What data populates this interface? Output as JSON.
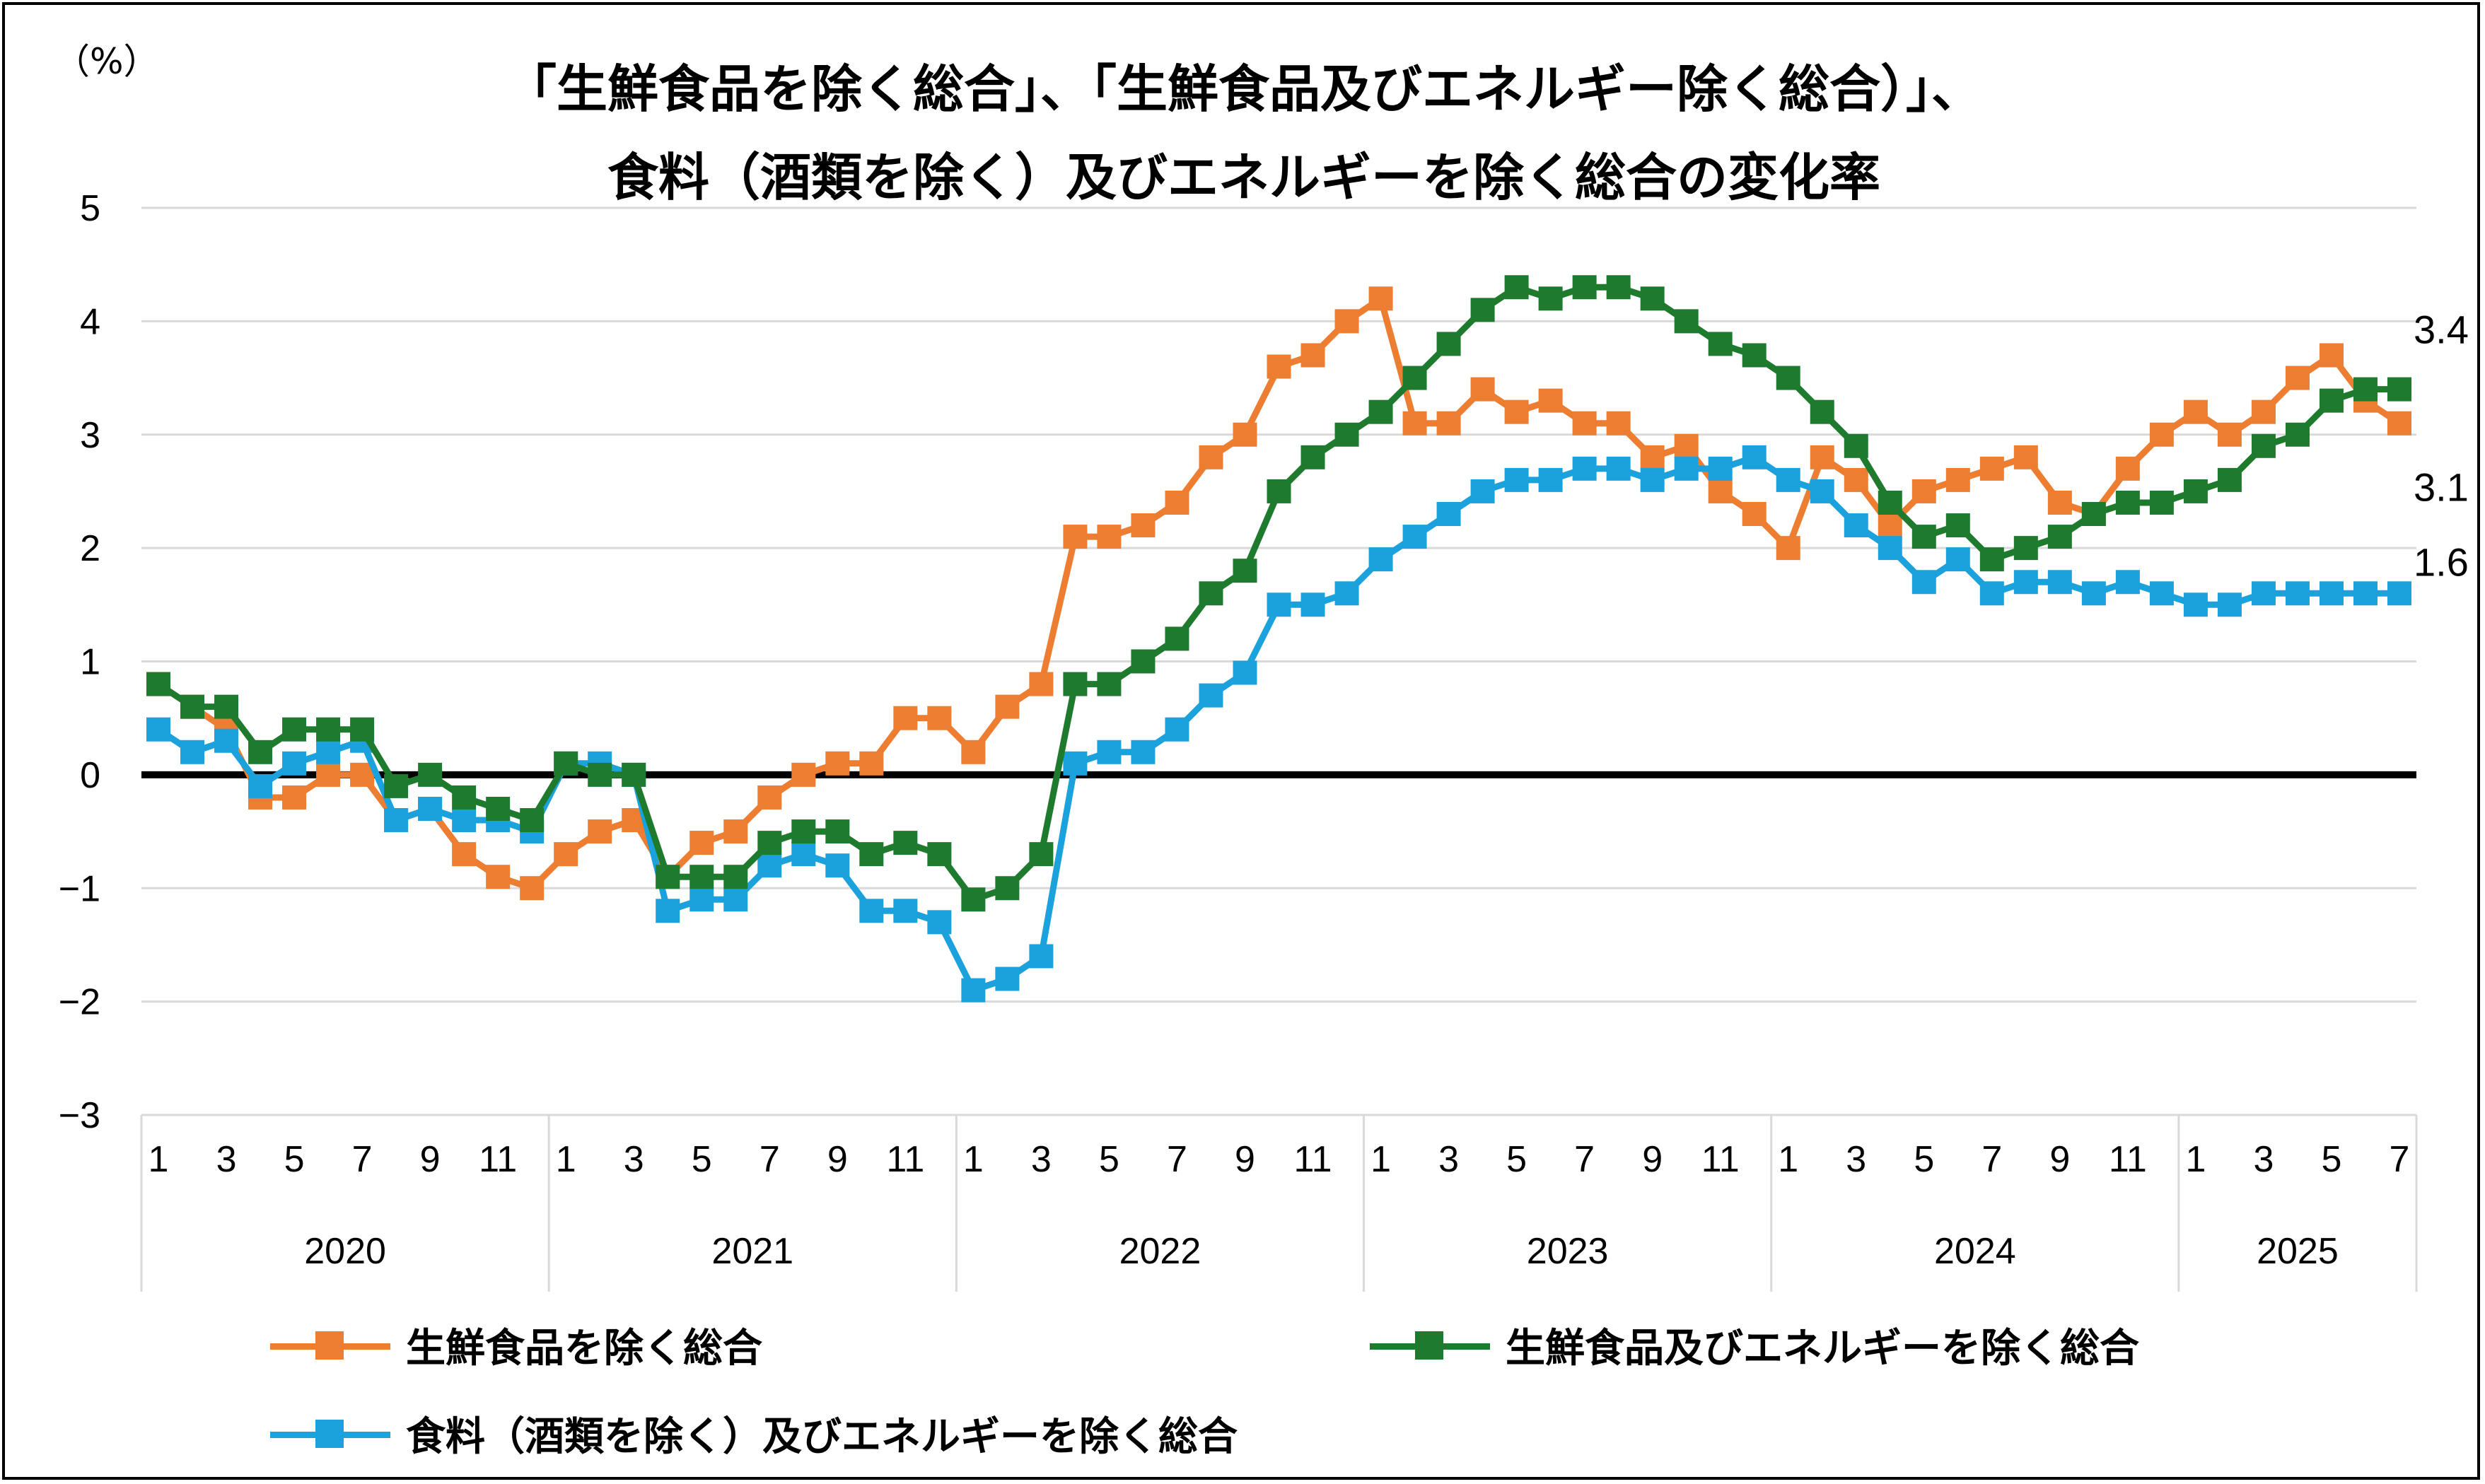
{
  "title_lines": [
    "「生鮮食品を除く総合」、「生鮮食品及びエネルギー除く総合）」、",
    "食料（酒類を除く）及びエネルギーを除く総合の変化率"
  ],
  "unit_label": "（%）",
  "legend": [
    {
      "label": "生鮮食品を除く総合",
      "color": "#ED7D31"
    },
    {
      "label": "生鮮食品及びエネルギーを除く総合",
      "color": "#1E7B2E"
    },
    {
      "label": "食料（酒類を除く）及びエネルギーを除く総合",
      "color": "#1BA1DC"
    }
  ],
  "chart_data": {
    "type": "line",
    "title": "「生鮮食品を除く総合」、「生鮮食品及びエネルギー除く総合）」、食料（酒類を除く）及びエネルギーを除く総合の変化率",
    "ylabel": "（%）",
    "ylim": [
      -3,
      5
    ],
    "yticks": [
      5,
      4,
      3,
      2,
      1,
      0,
      -1,
      -2,
      -3
    ],
    "grid": true,
    "legend_position": "bottom",
    "month_ticks": [
      "1",
      "3",
      "5",
      "7",
      "9",
      "11",
      "1",
      "3",
      "5",
      "7",
      "9",
      "11",
      "1",
      "3",
      "5",
      "7",
      "9",
      "11",
      "1",
      "3",
      "5",
      "7",
      "9",
      "11",
      "1",
      "3",
      "5",
      "7",
      "9",
      "11",
      "1",
      "3",
      "5",
      "7"
    ],
    "years": [
      {
        "label": "2020",
        "months": 12
      },
      {
        "label": "2021",
        "months": 12
      },
      {
        "label": "2022",
        "months": 12
      },
      {
        "label": "2023",
        "months": 12
      },
      {
        "label": "2024",
        "months": 12
      },
      {
        "label": "2025",
        "months": 7
      }
    ],
    "end_labels": [
      "3.4",
      "3.1",
      "1.6"
    ],
    "series": [
      {
        "name": "生鮮食品を除く総合",
        "color": "#ED7D31",
        "values": [
          0.8,
          0.6,
          0.4,
          -0.2,
          -0.2,
          0.0,
          0.0,
          -0.4,
          -0.3,
          -0.7,
          -0.9,
          -1.0,
          -0.7,
          -0.5,
          -0.4,
          -0.9,
          -0.6,
          -0.5,
          -0.2,
          0.0,
          0.1,
          0.1,
          0.5,
          0.5,
          0.2,
          0.6,
          0.8,
          2.1,
          2.1,
          2.2,
          2.4,
          2.8,
          3.0,
          3.6,
          3.7,
          4.0,
          4.2,
          3.1,
          3.1,
          3.4,
          3.2,
          3.3,
          3.1,
          3.1,
          2.8,
          2.9,
          2.5,
          2.3,
          2.0,
          2.8,
          2.6,
          2.2,
          2.5,
          2.6,
          2.7,
          2.8,
          2.4,
          2.3,
          2.7,
          3.0,
          3.2,
          3.0,
          3.2,
          3.5,
          3.7,
          3.3,
          3.1
        ]
      },
      {
        "name": "生鮮食品及びエネルギーを除く総合",
        "color": "#1E7B2E",
        "values": [
          0.8,
          0.6,
          0.6,
          0.2,
          0.4,
          0.4,
          0.4,
          -0.1,
          0.0,
          -0.2,
          -0.3,
          -0.4,
          0.1,
          0.0,
          0.0,
          -0.9,
          -0.9,
          -0.9,
          -0.6,
          -0.5,
          -0.5,
          -0.7,
          -0.6,
          -0.7,
          -1.1,
          -1.0,
          -0.7,
          0.8,
          0.8,
          1.0,
          1.2,
          1.6,
          1.8,
          2.5,
          2.8,
          3.0,
          3.2,
          3.5,
          3.8,
          4.1,
          4.3,
          4.2,
          4.3,
          4.3,
          4.2,
          4.0,
          3.8,
          3.7,
          3.5,
          3.2,
          2.9,
          2.4,
          2.1,
          2.2,
          1.9,
          2.0,
          2.1,
          2.3,
          2.4,
          2.4,
          2.5,
          2.6,
          2.9,
          3.0,
          3.3,
          3.4,
          3.4
        ]
      },
      {
        "name": "食料（酒類を除く）及びエネルギーを除く総合",
        "color": "#1BA1DC",
        "values": [
          0.4,
          0.2,
          0.3,
          -0.1,
          0.1,
          0.2,
          0.3,
          -0.4,
          -0.3,
          -0.4,
          -0.4,
          -0.5,
          0.1,
          0.1,
          0.0,
          -1.2,
          -1.1,
          -1.1,
          -0.8,
          -0.7,
          -0.8,
          -1.2,
          -1.2,
          -1.3,
          -1.9,
          -1.8,
          -1.6,
          0.1,
          0.2,
          0.2,
          0.4,
          0.7,
          0.9,
          1.5,
          1.5,
          1.6,
          1.9,
          2.1,
          2.3,
          2.5,
          2.6,
          2.6,
          2.7,
          2.7,
          2.6,
          2.7,
          2.7,
          2.8,
          2.6,
          2.5,
          2.2,
          2.0,
          1.7,
          1.9,
          1.6,
          1.7,
          1.7,
          1.6,
          1.7,
          1.6,
          1.5,
          1.5,
          1.6,
          1.6,
          1.6,
          1.6,
          1.6
        ]
      }
    ]
  }
}
